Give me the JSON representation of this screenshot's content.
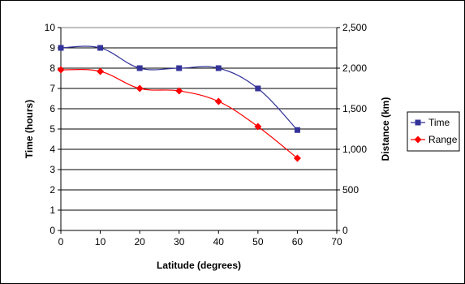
{
  "chart_data": {
    "type": "line",
    "title": "",
    "xlabel": "Latitude (degrees)",
    "ylabel_left": "Time (hours)",
    "ylabel_right": "Distance (km)",
    "x": [
      0,
      10,
      20,
      30,
      40,
      50,
      60
    ],
    "xlim": [
      0,
      70
    ],
    "x_ticks": [
      0,
      10,
      20,
      30,
      40,
      50,
      60,
      70
    ],
    "ylim_left": [
      0,
      10
    ],
    "y_left_ticks": [
      0,
      1,
      2,
      3,
      4,
      5,
      6,
      7,
      8,
      9,
      10
    ],
    "ylim_right": [
      0,
      2500
    ],
    "y_right_ticks": [
      {
        "value": 0,
        "label": "0"
      },
      {
        "value": 500,
        "label": "500"
      },
      {
        "value": 1000,
        "label": "1,000"
      },
      {
        "value": 1500,
        "label": "1,500"
      },
      {
        "value": 2000,
        "label": "2,000"
      },
      {
        "value": 2500,
        "label": "2,500"
      }
    ],
    "grid": "horizontal",
    "legend_position": "right",
    "series": [
      {
        "name": "Time",
        "axis": "left",
        "color": "#333399",
        "marker": "square",
        "values": [
          9,
          9,
          8,
          8,
          8,
          7,
          4.95
        ]
      },
      {
        "name": "Range",
        "axis": "right",
        "color": "#ff0000",
        "marker": "diamond",
        "values": [
          1980,
          1960,
          1750,
          1720,
          1590,
          1280,
          890
        ]
      }
    ]
  }
}
